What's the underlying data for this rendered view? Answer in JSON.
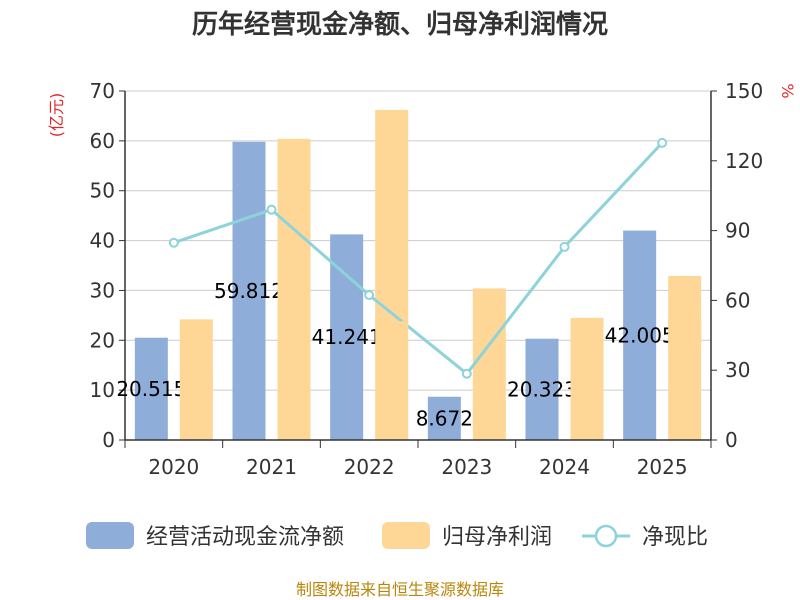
{
  "chart_data": {
    "type": "bar",
    "title": "历年经营现金净额、归母净利润情况",
    "categories": [
      "2020",
      "2021",
      "2022",
      "2023",
      "2024",
      "2025"
    ],
    "left_axis": {
      "label": "(亿元)",
      "ylim": [
        0,
        70
      ],
      "ticks": [
        "0",
        "10",
        "20",
        "30",
        "40",
        "50",
        "60",
        "70"
      ]
    },
    "right_axis": {
      "label": "%",
      "ylim": [
        0,
        150
      ],
      "ticks": [
        "0",
        "30",
        "60",
        "90",
        "120",
        "150"
      ]
    },
    "series": [
      {
        "name": "经营活动现金流净额",
        "type": "bar",
        "axis": "left",
        "values": [
          20.515,
          59.812,
          41.241,
          8.672,
          20.323,
          42.005
        ],
        "labels": [
          "20.515",
          "59.812",
          "41.241",
          "8.672",
          "20.323",
          "42.005"
        ]
      },
      {
        "name": "归母净利润",
        "type": "bar",
        "axis": "left",
        "values": [
          24.2,
          60.4,
          66.2,
          30.4,
          24.5,
          32.9
        ]
      },
      {
        "name": "净现比",
        "type": "line",
        "axis": "right",
        "values": [
          84.8,
          99.0,
          62.3,
          28.5,
          83.0,
          127.7
        ]
      }
    ],
    "colors": {
      "bar1": "#8eadd9",
      "bar2": "#fed797",
      "line": "#8dd3d9",
      "grid": "#cccccc",
      "axis": "#333333"
    },
    "legend": [
      "经营活动现金流净额",
      "归母净利润",
      "净现比"
    ],
    "source": "制图数据来自恒生聚源数据库"
  }
}
